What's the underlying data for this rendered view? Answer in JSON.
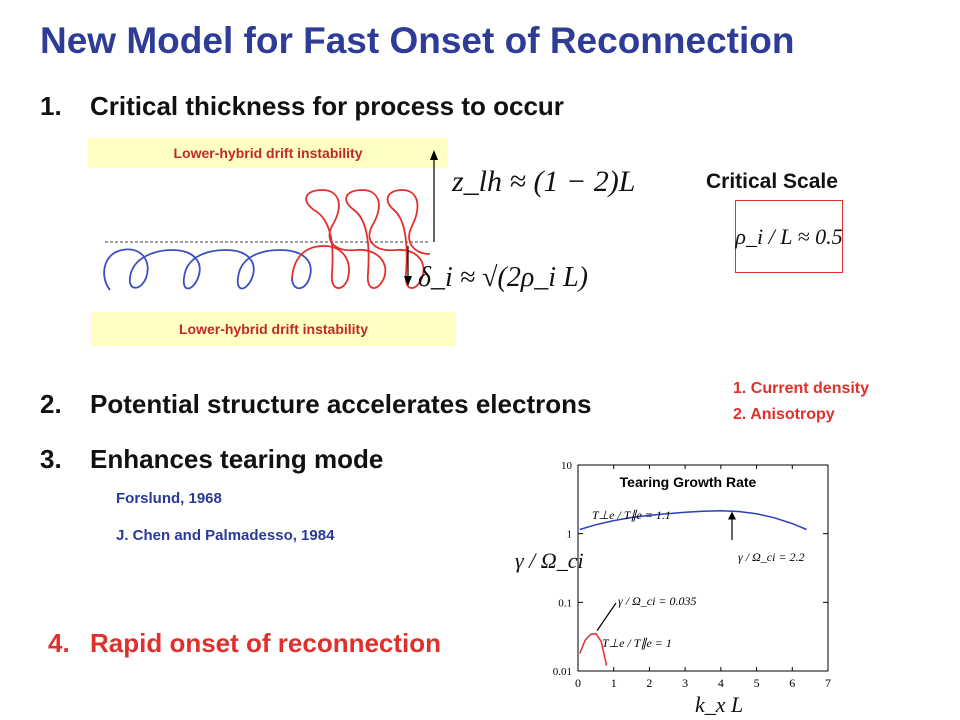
{
  "slide": {
    "title": "New Model for Fast Onset of Reconnection",
    "items": [
      {
        "num": "1.",
        "text": "Critical thickness for process to occur"
      },
      {
        "num": "2.",
        "text": "Potential structure accelerates electrons"
      },
      {
        "num": "3.",
        "text": "Enhances tearing mode"
      },
      {
        "num": "4.",
        "text": "Rapid onset of reconnection"
      }
    ],
    "lhdi_label": "Lower-hybrid drift instability",
    "z_lh_eq": "z_lh ≈ (1 − 2)L",
    "delta_i_eq": "δ_i ≈ √(2ρ_i L)",
    "critical_scale": {
      "label": "Critical Scale",
      "eq": "ρ_i / L ≈ 0.5",
      "frame_color": "#e0302c"
    },
    "notes": [
      "1. Current density",
      "2. Anisotropy"
    ],
    "references": [
      "Forslund, 1968",
      "J. Chen and Palmadesso, 1984"
    ],
    "colors": {
      "title": "#2e3c97",
      "accent": "#e0302c",
      "ref": "#2a3a9a",
      "band": "#ffffc4",
      "orbit_left": "#3a4fc2",
      "orbit_right": "#e0302c"
    }
  },
  "chart_data": {
    "type": "line",
    "title": "Tearing Growth Rate",
    "xlabel": "k_x L",
    "ylabel": "γ / Ω_ci",
    "xlim": [
      0,
      7
    ],
    "ylim": [
      0.01,
      10
    ],
    "yscale": "log",
    "x_ticks": [
      "0",
      "1",
      "2",
      "3",
      "4",
      "5",
      "6",
      "7"
    ],
    "y_ticks": [
      "0.01",
      "0.1",
      "1",
      "10"
    ],
    "series": [
      {
        "name": "T⊥e / T∥e = 1.1",
        "x": [
          0.05,
          0.5,
          1.0,
          1.5,
          2.0,
          2.5,
          3.0,
          3.5,
          4.0,
          4.5,
          5.0,
          5.5,
          6.0,
          6.4
        ],
        "y": [
          1.15,
          1.35,
          1.55,
          1.72,
          1.85,
          1.95,
          2.05,
          2.12,
          2.15,
          2.1,
          1.95,
          1.7,
          1.4,
          1.15
        ]
      },
      {
        "name": "T⊥e / T∥e = 1",
        "x": [
          0.05,
          0.2,
          0.35,
          0.5,
          0.65,
          0.8
        ],
        "y": [
          0.018,
          0.028,
          0.034,
          0.035,
          0.027,
          0.012
        ]
      }
    ],
    "annotations": [
      "γ / Ω_ci = 2.2",
      "γ / Ω_ci = 0.035"
    ]
  }
}
